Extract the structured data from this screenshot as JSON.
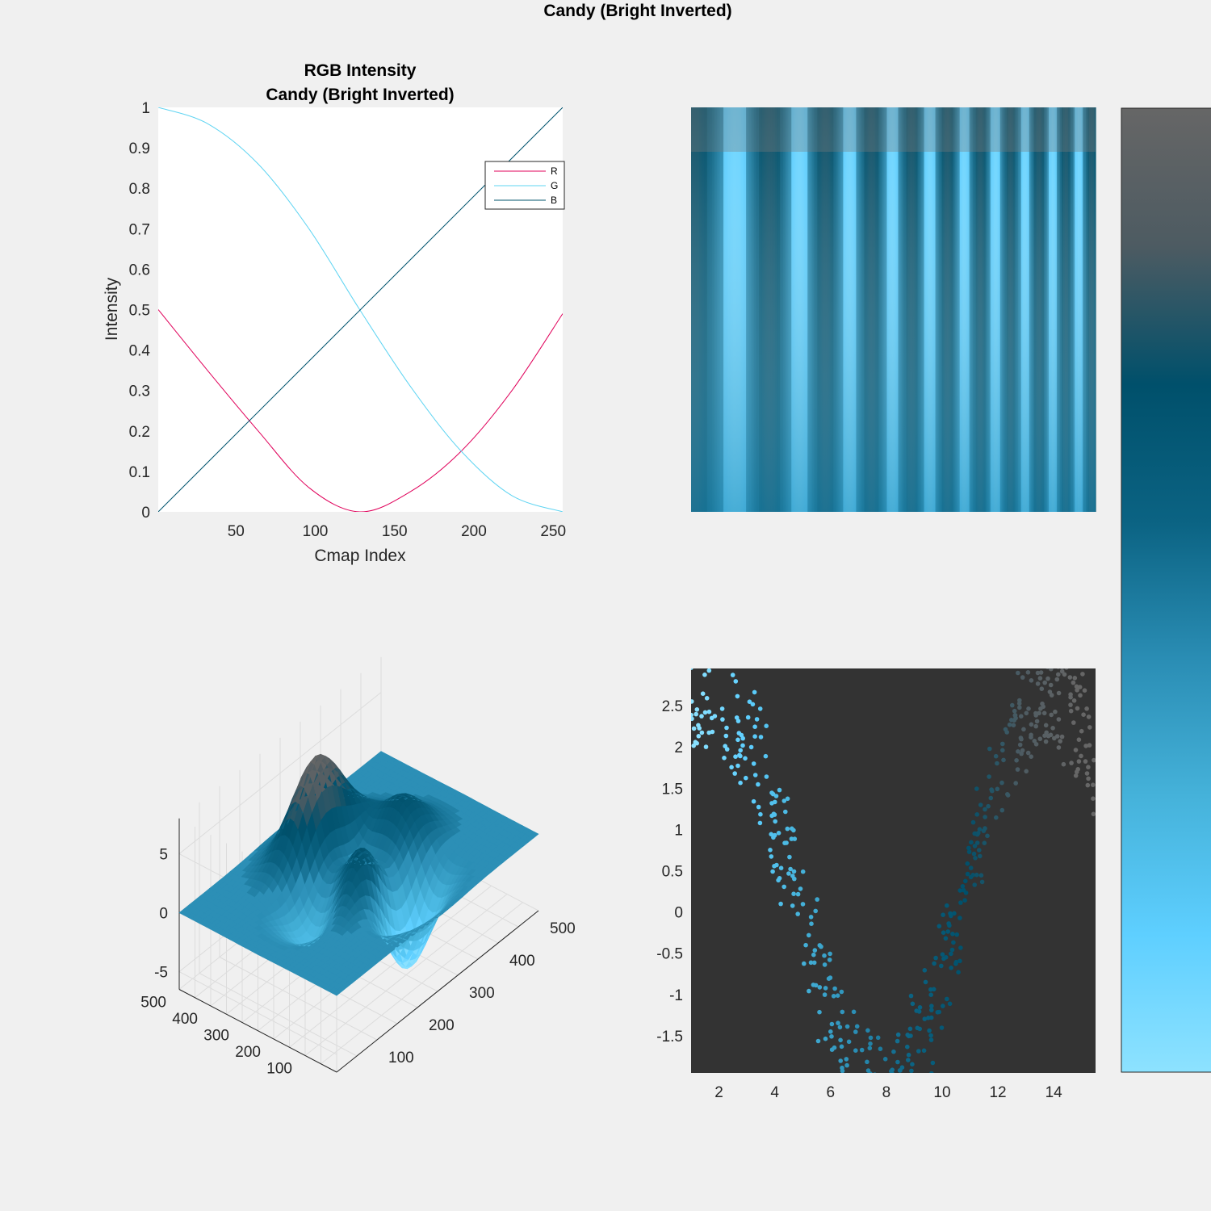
{
  "figure": {
    "title": "Candy (Bright Inverted)"
  },
  "colormap_stops": [
    "#666666",
    "#4d5b62",
    "#00506b",
    "#0b6383",
    "#2a8db4",
    "#45b2da",
    "#5ecfff",
    "#8de2ff"
  ],
  "chart_data": [
    {
      "id": "rgb",
      "type": "line",
      "title": [
        "RGB Intensity",
        "Candy (Bright Inverted)"
      ],
      "xlabel": "Cmap Index",
      "ylabel": "Intensity",
      "xlim": [
        1,
        256
      ],
      "ylim": [
        0,
        1
      ],
      "xticks": [
        50,
        100,
        150,
        200,
        250
      ],
      "yticks": [
        0,
        0.1,
        0.2,
        0.3,
        0.4,
        0.5,
        0.6,
        0.7,
        0.8,
        0.9,
        1
      ],
      "legend_position": "top-right",
      "series": [
        {
          "name": "R",
          "color": "#e0005a",
          "x": [
            1,
            32,
            64,
            96,
            128,
            160,
            192,
            224,
            256
          ],
          "y": [
            0.5,
            0.35,
            0.2,
            0.06,
            0.0,
            0.05,
            0.15,
            0.3,
            0.49
          ]
        },
        {
          "name": "G",
          "color": "#5fd4f2",
          "x": [
            1,
            32,
            64,
            96,
            128,
            160,
            192,
            224,
            256
          ],
          "y": [
            1.0,
            0.96,
            0.86,
            0.7,
            0.5,
            0.31,
            0.15,
            0.04,
            0.0
          ]
        },
        {
          "name": "B",
          "color": "#00546e",
          "x": [
            1,
            256
          ],
          "y": [
            0.0,
            1.0
          ]
        }
      ]
    },
    {
      "id": "image",
      "type": "heatmap",
      "description_values": "vertical stripes increasing in frequency left to right"
    },
    {
      "id": "surface",
      "type": "surface",
      "zticks": [
        -5,
        0,
        5
      ],
      "xticks": [
        100,
        200,
        300,
        400,
        500
      ],
      "yticks": [
        100,
        200,
        300,
        400,
        500
      ],
      "zlim": [
        -6.5,
        8
      ]
    },
    {
      "id": "scatter",
      "type": "scatter",
      "xlim": [
        1,
        15.5
      ],
      "ylim": [
        -1.95,
        2.95
      ],
      "xticks": [
        2,
        4,
        6,
        8,
        10,
        12,
        14
      ],
      "yticks": [
        -1.5,
        -1,
        -0.5,
        0,
        0.5,
        1,
        1.5,
        2,
        2.5
      ],
      "background": "#333333"
    }
  ]
}
